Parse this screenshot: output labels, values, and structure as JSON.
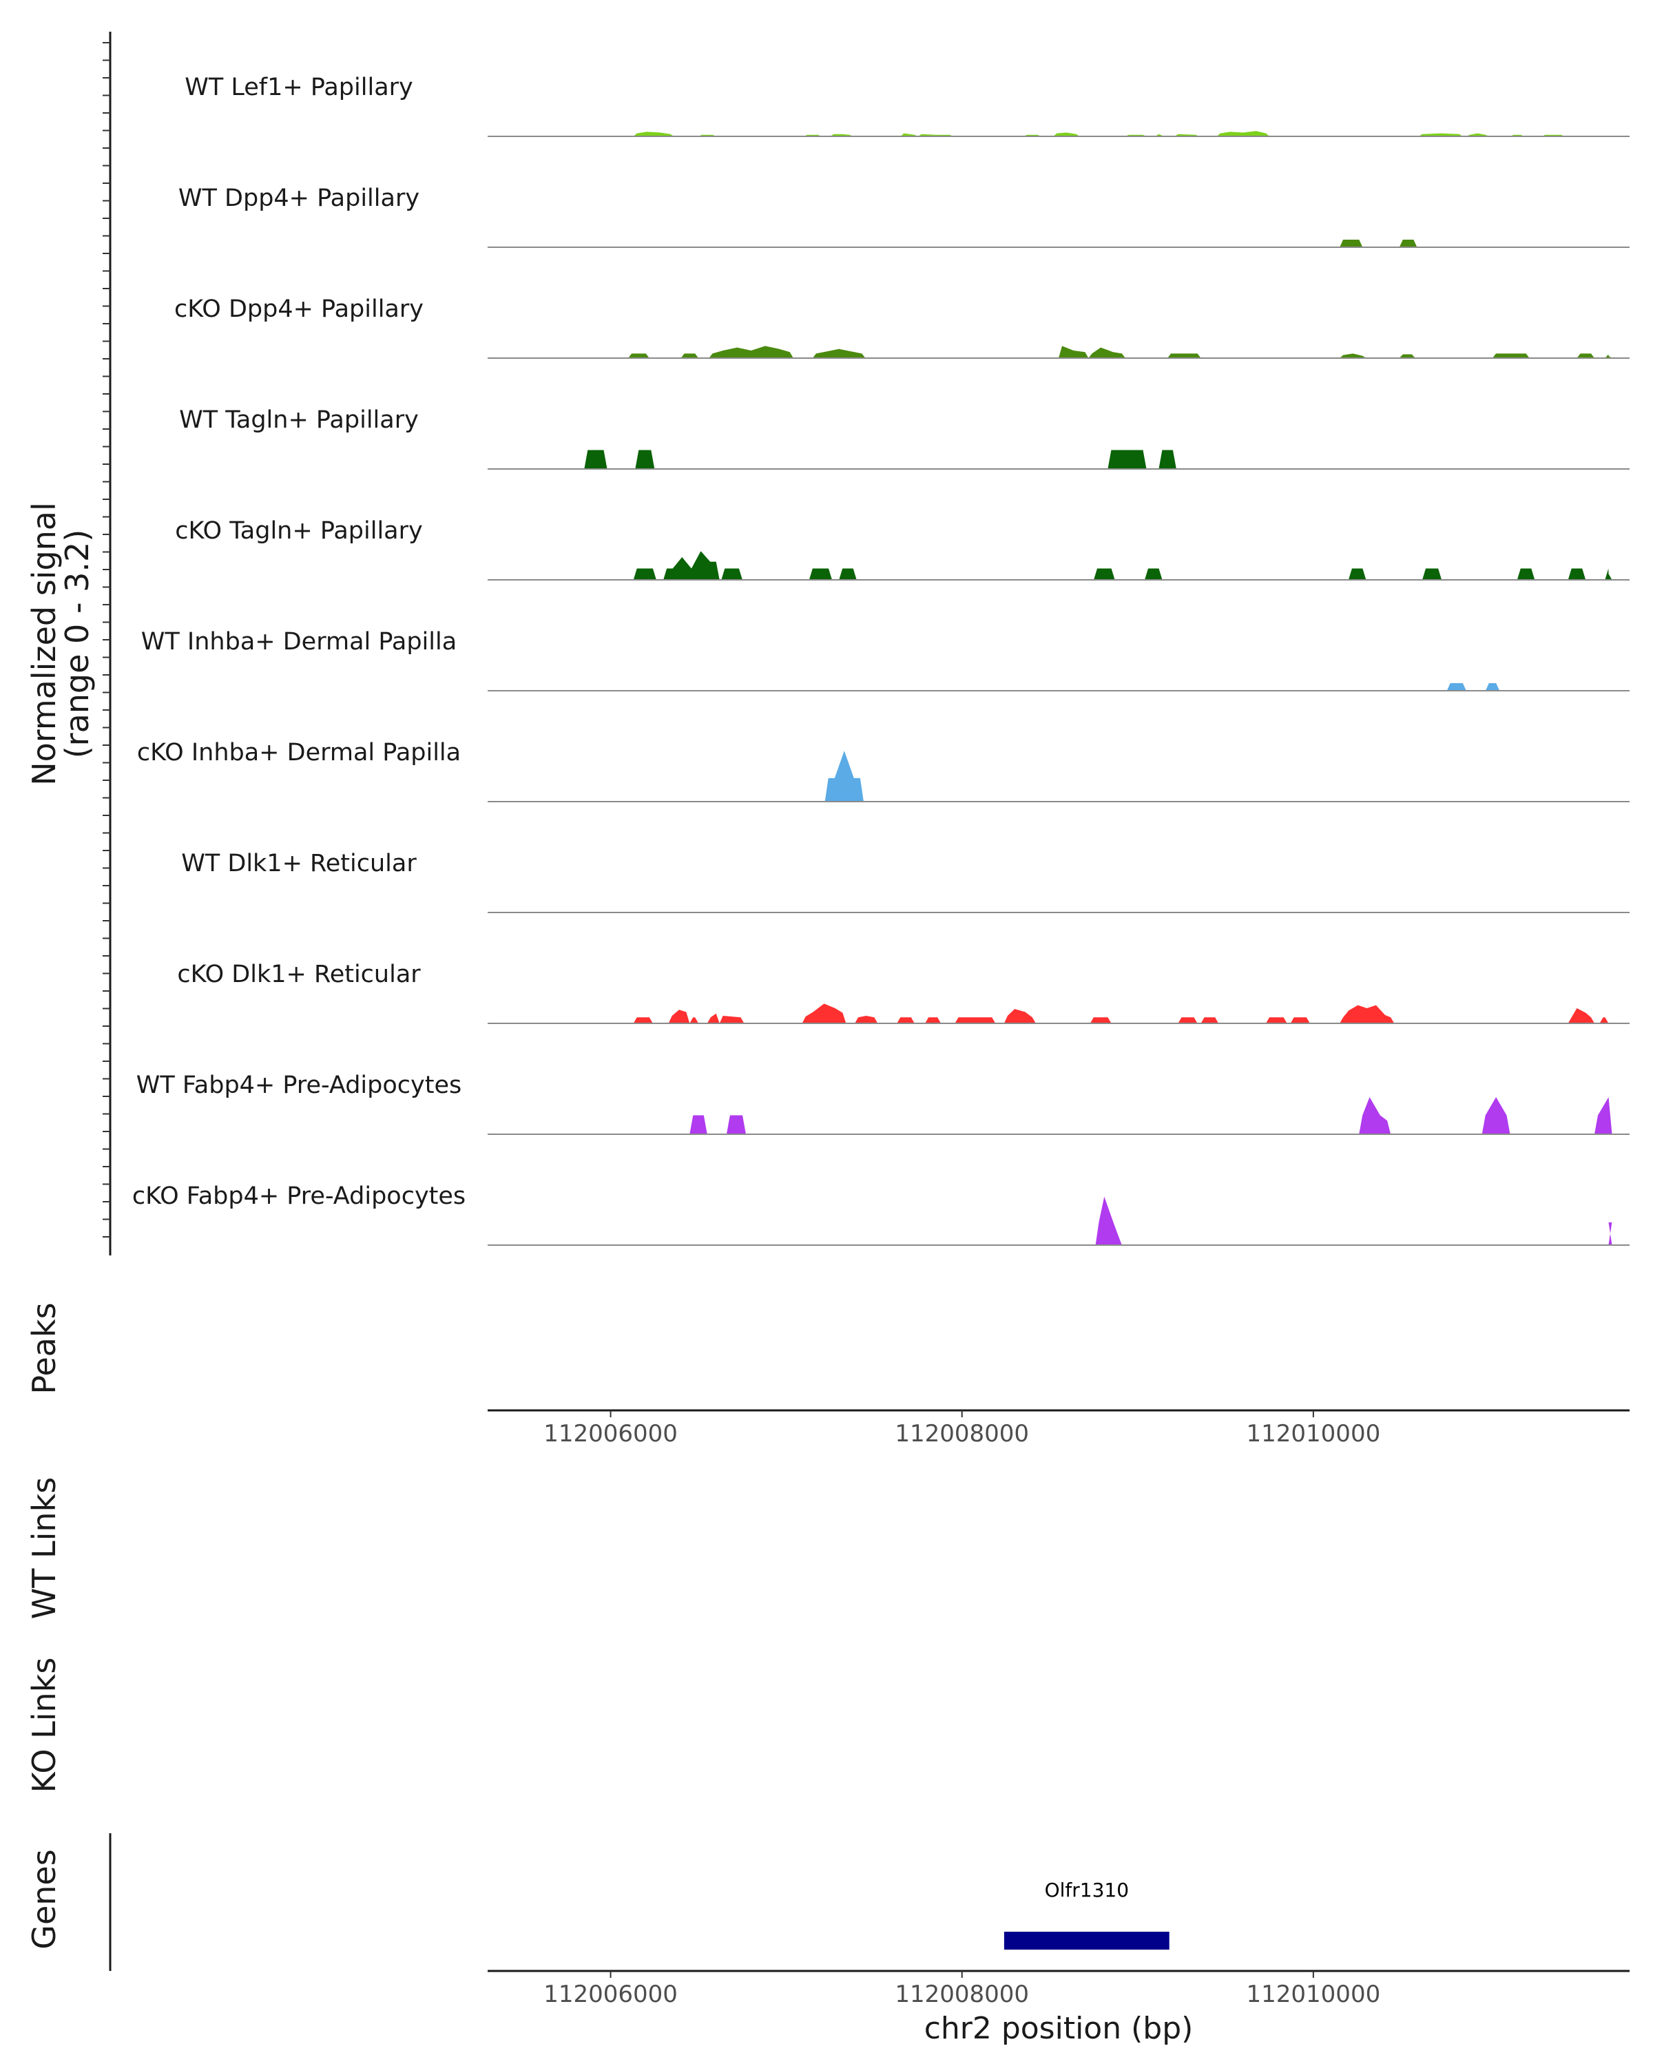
{
  "chart_data": {
    "type": "area",
    "title": "",
    "region": "chr2",
    "xlim": [
      112005300,
      112011800
    ],
    "signal_ylabel": [
      "Normalized signal",
      "(range 0 - 3.2)"
    ],
    "ylim": [
      0,
      3.2
    ],
    "xlabel": "chr2 position (bp)",
    "x_ticks": [
      112006000,
      112008000,
      112010000
    ],
    "x_tick_labels": [
      "112006000",
      "112008000",
      "112010000"
    ],
    "tracks": [
      {
        "name": "WT Lef1+ Papillary",
        "color": "#7cd11a",
        "segments": [
          [
            112006130,
            112006360,
            [
              0.4,
              0.6,
              0.5,
              0.3
            ]
          ],
          [
            112006500,
            112006600,
            [
              0.2,
              0.2
            ]
          ],
          [
            112007100,
            112007200,
            [
              0.2,
              0.2
            ]
          ],
          [
            112007250,
            112007380,
            [
              0.3,
              0.3,
              0.2
            ]
          ],
          [
            112007650,
            112007750,
            [
              0.4,
              0.2
            ]
          ],
          [
            112007750,
            112007950,
            [
              0.3,
              0.2,
              0.2
            ]
          ],
          [
            112008350,
            112008450,
            [
              0.2,
              0.2
            ]
          ],
          [
            112008520,
            112008670,
            [
              0.4,
              0.5,
              0.3
            ]
          ],
          [
            112008930,
            112009050,
            [
              0.2,
              0.2
            ]
          ],
          [
            112009100,
            112009150,
            [
              0.3,
              0.2
            ]
          ],
          [
            112009210,
            112009350,
            [
              0.3,
              0.2
            ]
          ],
          [
            112009450,
            112009750,
            [
              0.4,
              0.6,
              0.5,
              0.7,
              0.4
            ]
          ],
          [
            112010600,
            112010850,
            [
              0.3,
              0.4,
              0.3
            ]
          ],
          [
            112010870,
            112011000,
            [
              0.2,
              0.4,
              0.2
            ]
          ],
          [
            112011120,
            112011200,
            [
              0.2,
              0.2
            ]
          ],
          [
            112011300,
            112011430,
            [
              0.2,
              0.2
            ]
          ]
        ]
      },
      {
        "name": "WT Dpp4+ Papillary",
        "color": "#4a8a0e",
        "segments": [
          [
            112010150,
            112010280,
            [
              1.0,
              1.0
            ]
          ],
          [
            112010490,
            112010590,
            [
              1.0,
              1.0
            ]
          ]
        ]
      },
      {
        "name": "cKO Dpp4+ Papillary",
        "color": "#4a8a0e",
        "segments": [
          [
            112006100,
            112006220,
            [
              0.6,
              0.6
            ]
          ],
          [
            112006400,
            112006500,
            [
              0.6,
              0.6
            ]
          ],
          [
            112006560,
            112007040,
            [
              0.6,
              1.0,
              1.4,
              1.0,
              1.6,
              1.2,
              0.8
            ]
          ],
          [
            112007150,
            112007450,
            [
              0.6,
              1.2,
              0.6
            ]
          ],
          [
            112008550,
            112008720,
            [
              1.6,
              1.0,
              0.8
            ]
          ],
          [
            112008720,
            112008930,
            [
              0.6,
              1.4,
              0.8,
              0.6
            ]
          ],
          [
            112009170,
            112009360,
            [
              0.6,
              0.6
            ]
          ],
          [
            112010150,
            112010300,
            [
              0.4,
              0.6,
              0.3
            ]
          ],
          [
            112010490,
            112010580,
            [
              0.5,
              0.5
            ]
          ],
          [
            112011020,
            112011230,
            [
              0.6,
              0.6,
              0.6
            ]
          ],
          [
            112011500,
            112011600,
            [
              0.6,
              0.6
            ]
          ],
          [
            112011660,
            112011700,
            [
              0.5,
              0.3
            ]
          ]
        ]
      },
      {
        "name": "WT Tagln+ Papillary",
        "color": "#0a6306",
        "segments": [
          [
            112005850,
            112005980,
            [
              2.5,
              2.5
            ]
          ],
          [
            112006140,
            112006250,
            [
              2.5,
              2.5
            ]
          ],
          [
            112008830,
            112009050,
            [
              2.5,
              2.5
            ]
          ],
          [
            112009120,
            112009220,
            [
              2.5,
              2.5
            ]
          ]
        ]
      },
      {
        "name": "cKO Tagln+ Papillary",
        "color": "#0a6306",
        "segments": [
          [
            112006130,
            112006260,
            [
              1.5,
              1.5
            ]
          ],
          [
            112006300,
            112006620,
            [
              1.5,
              1.5,
              3.0,
              1.5,
              3.8,
              2.4,
              2.4
            ]
          ],
          [
            112006630,
            112006750,
            [
              1.5,
              1.5
            ]
          ],
          [
            112007130,
            112007260,
            [
              1.5,
              1.5
            ]
          ],
          [
            112007300,
            112007400,
            [
              1.5,
              1.5
            ]
          ],
          [
            112008750,
            112008870,
            [
              1.5,
              1.5
            ]
          ],
          [
            112009040,
            112009140,
            [
              1.5,
              1.5
            ]
          ],
          [
            112010200,
            112010300,
            [
              1.5,
              1.5
            ]
          ],
          [
            112010620,
            112010730,
            [
              1.5,
              1.5
            ]
          ],
          [
            112011160,
            112011260,
            [
              1.5,
              1.5
            ]
          ],
          [
            112011450,
            112011550,
            [
              1.5,
              1.5
            ]
          ],
          [
            112011660,
            112011700,
            [
              1.5,
              0.8
            ]
          ]
        ]
      },
      {
        "name": "WT Inhba+ Dermal Papilla",
        "color": "#5aabe6",
        "segments": [
          [
            112010760,
            112010870,
            [
              1.0,
              1.0
            ]
          ],
          [
            112010980,
            112011060,
            [
              1.0,
              1.0
            ]
          ]
        ]
      },
      {
        "name": "cKO Inhba+ Dermal Papilla",
        "color": "#5aabe6",
        "segments": [
          [
            112007220,
            112007440,
            [
              3.1,
              3.1,
              6.7,
              3.1,
              3.1
            ]
          ]
        ]
      },
      {
        "name": "WT Dlk1+ Reticular",
        "color": "#ff3030",
        "segments": []
      },
      {
        "name": "cKO Dlk1+ Reticular",
        "color": "#ff3030",
        "segments": [
          [
            112006130,
            112006240,
            [
              0.8,
              0.8
            ]
          ],
          [
            112006330,
            112006450,
            [
              1.0,
              1.8,
              1.5
            ]
          ],
          [
            112006450,
            112006500,
            [
              0.8,
              0.8
            ]
          ],
          [
            112006550,
            112006620,
            [
              0.8,
              1.3
            ]
          ],
          [
            112006620,
            112006760,
            [
              1.0,
              0.8
            ]
          ],
          [
            112007090,
            112007340,
            [
              0.9,
              1.5,
              2.6,
              2.0,
              1.4
            ]
          ],
          [
            112007390,
            112007520,
            [
              0.8,
              1.0,
              0.8
            ]
          ],
          [
            112007630,
            112007730,
            [
              0.8,
              0.8
            ]
          ],
          [
            112007790,
            112007880,
            [
              0.8,
              0.8
            ]
          ],
          [
            112007960,
            112008190,
            [
              0.8,
              0.8,
              0.8
            ]
          ],
          [
            112008240,
            112008420,
            [
              1.0,
              1.9,
              1.5,
              0.8
            ]
          ],
          [
            112008730,
            112008850,
            [
              0.8,
              0.8
            ]
          ],
          [
            112009230,
            112009340,
            [
              0.8,
              0.8
            ]
          ],
          [
            112009360,
            112009460,
            [
              0.8,
              0.8
            ]
          ],
          [
            112009730,
            112009850,
            [
              0.8,
              0.8
            ]
          ],
          [
            112009870,
            112009980,
            [
              0.8,
              0.8
            ]
          ],
          [
            112010150,
            112010460,
            [
              0.8,
              1.7,
              2.4,
              2.0,
              2.4,
              1.1,
              0.8
            ]
          ],
          [
            112011450,
            112011600,
            [
              0.8,
              2.0,
              1.4,
              0.8
            ]
          ],
          [
            112011630,
            112011680,
            [
              0.8,
              0.8
            ]
          ]
        ]
      },
      {
        "name": "WT Fabp4+ Pre-Adipocytes",
        "color": "#b03bef",
        "segments": [
          [
            112006450,
            112006550,
            [
              2.5,
              2.5
            ]
          ],
          [
            112006660,
            112006770,
            [
              2.5,
              2.5
            ]
          ],
          [
            112010260,
            112010440,
            [
              2.5,
              4.9,
              2.5,
              1.8
            ]
          ],
          [
            112010960,
            112011120,
            [
              2.5,
              4.9,
              2.5
            ]
          ],
          [
            112011600,
            112011700,
            [
              2.5,
              4.9
            ]
          ]
        ]
      },
      {
        "name": "cKO Fabp4+ Pre-Adipocytes",
        "color": "#b03bef",
        "segments": [
          [
            112008760,
            112008910,
            [
              3.1,
              6.4,
              3.1,
              1.2
            ]
          ],
          [
            112011680,
            112011700,
            [
              3.0,
              3.0
            ]
          ]
        ]
      }
    ],
    "peaks_label": "Peaks",
    "links_tracks": [
      "WT Links",
      "KO Links"
    ],
    "genes_label": "Genes",
    "genes": [
      {
        "name": "Olfr1310",
        "start": 112008240,
        "end": 112009180,
        "color": "#00008b"
      }
    ]
  }
}
